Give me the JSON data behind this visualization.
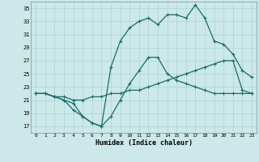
{
  "xlabel": "Humidex (Indice chaleur)",
  "bg_color": "#cce8e8",
  "grid_color": "#aad4d4",
  "line_color": "#1a6b6b",
  "xlim": [
    -0.5,
    23.5
  ],
  "ylim": [
    16,
    36
  ],
  "yticks": [
    17,
    19,
    21,
    23,
    25,
    27,
    29,
    31,
    33,
    35
  ],
  "xticks": [
    0,
    1,
    2,
    3,
    4,
    5,
    6,
    7,
    8,
    9,
    10,
    11,
    12,
    13,
    14,
    15,
    16,
    17,
    18,
    19,
    20,
    21,
    22,
    23
  ],
  "line1_x": [
    0,
    1,
    2,
    3,
    4,
    5,
    6,
    7,
    8,
    9,
    10,
    11,
    12,
    13,
    14,
    15,
    16,
    17,
    18,
    19,
    20,
    21,
    22,
    23
  ],
  "line1_y": [
    22.0,
    22.0,
    21.5,
    21.5,
    21.0,
    21.0,
    21.5,
    21.5,
    22.0,
    22.0,
    22.5,
    22.5,
    23.0,
    23.5,
    24.0,
    24.5,
    25.0,
    25.5,
    26.0,
    26.5,
    27.0,
    27.0,
    22.5,
    22.0
  ],
  "line2_x": [
    0,
    1,
    2,
    3,
    4,
    5,
    6,
    7,
    8,
    9,
    10,
    11,
    12,
    13,
    14,
    15,
    16,
    17,
    18,
    19,
    20,
    21,
    22,
    23
  ],
  "line2_y": [
    22.0,
    22.0,
    21.5,
    21.0,
    19.5,
    18.5,
    17.5,
    17.0,
    18.5,
    21.0,
    23.5,
    25.5,
    27.5,
    27.5,
    25.0,
    24.0,
    23.5,
    23.0,
    22.5,
    22.0,
    22.0,
    22.0,
    22.0,
    22.0
  ],
  "line3_x": [
    0,
    1,
    2,
    3,
    4,
    5,
    6,
    7,
    8,
    9,
    10,
    11,
    12,
    13,
    14,
    15,
    16,
    17,
    18,
    19,
    20,
    21,
    22,
    23
  ],
  "line3_y": [
    22.0,
    22.0,
    21.5,
    21.0,
    20.5,
    18.5,
    17.5,
    17.0,
    26.0,
    30.0,
    32.0,
    33.0,
    33.5,
    32.5,
    34.0,
    34.0,
    33.5,
    35.5,
    33.5,
    30.0,
    29.5,
    28.0,
    25.5,
    24.5
  ]
}
